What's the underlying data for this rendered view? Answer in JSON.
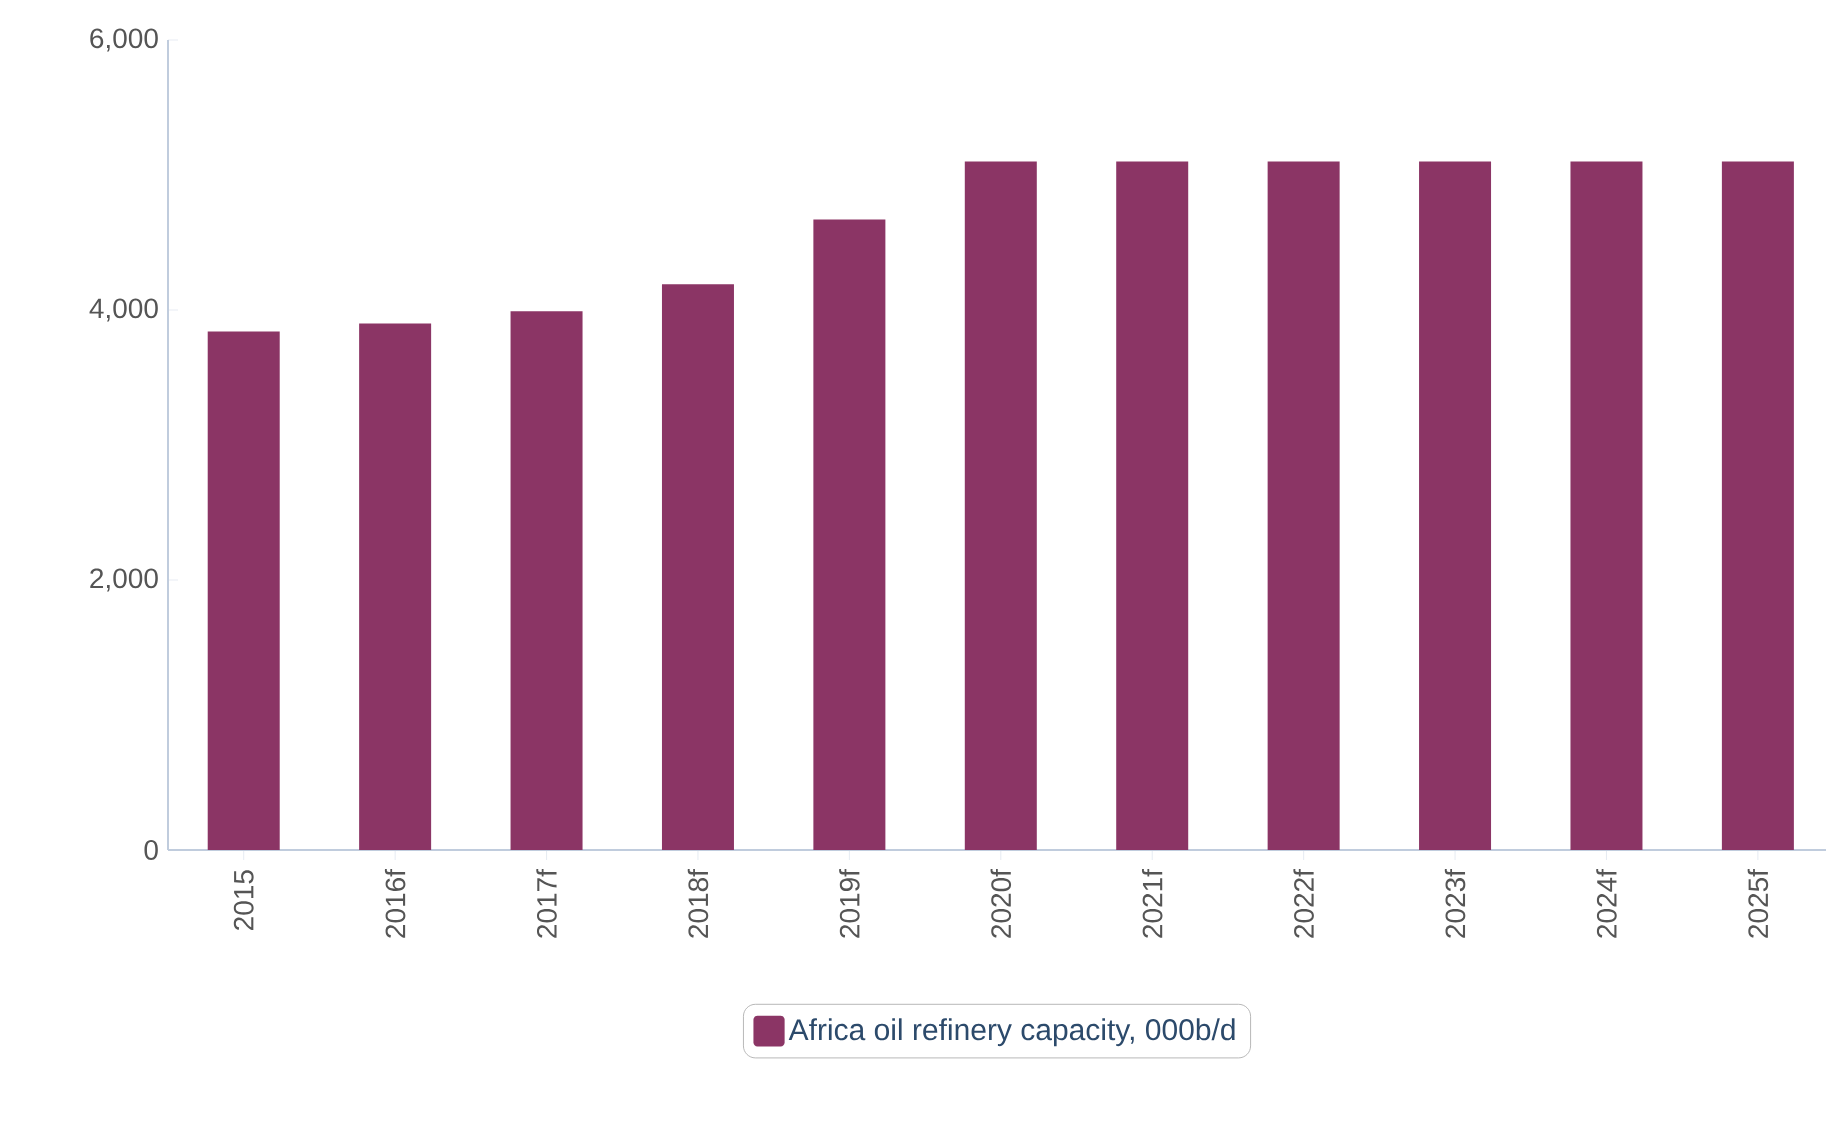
{
  "chart_data": {
    "type": "bar",
    "categories": [
      "2015",
      "2016f",
      "2017f",
      "2018f",
      "2019f",
      "2020f",
      "2021f",
      "2022f",
      "2023f",
      "2024f",
      "2025f"
    ],
    "series": [
      {
        "name": "Africa oil refinery capacity, 000b/d",
        "color": "#8b3565",
        "values": [
          3840,
          3900,
          3990,
          4190,
          4670,
          5100,
          5100,
          5100,
          5100,
          5100,
          5100
        ]
      }
    ],
    "ylim": [
      0,
      6000
    ],
    "yticks": [
      {
        "value": 0,
        "label": "0"
      },
      {
        "value": 2000,
        "label": "2,000"
      },
      {
        "value": 4000,
        "label": "4,000"
      },
      {
        "value": 6000,
        "label": "6,000"
      }
    ],
    "grid": false,
    "legend": "bottom"
  }
}
